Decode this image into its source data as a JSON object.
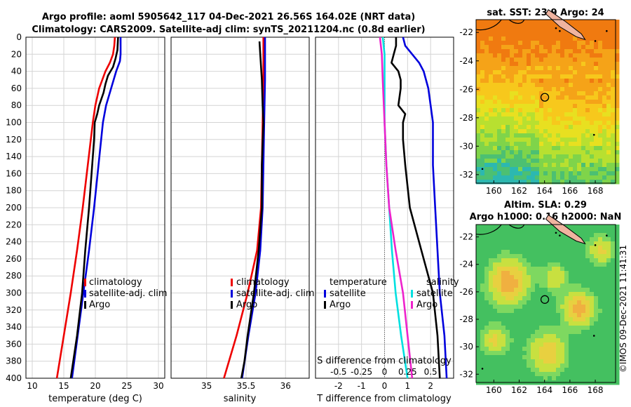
{
  "header": {
    "title_line1": "Argo profile: aoml 5905642_117 04-Dec-2021 26.56S 164.02E (NRT data)",
    "title_line2": "Climatology: CARS2009. Satellite-adj clim: synTS_20211204.nc (0.8d earlier)"
  },
  "sst_map": {
    "title": "sat. SST: 23.9 Argo: 24",
    "lat_ticks": [
      "-22",
      "-24",
      "-26",
      "-28",
      "-30",
      "-32"
    ],
    "lon_ticks": [
      "160",
      "162",
      "164",
      "166",
      "168"
    ]
  },
  "sla_map": {
    "title_line1": "Altim. SLA: 0.29",
    "title_line2": "Argo h1000: 0.16 h2000: NaN",
    "lat_ticks": [
      "-22",
      "-24",
      "-26",
      "-28",
      "-30",
      "-32"
    ],
    "lon_ticks": [
      "160",
      "162",
      "164",
      "166",
      "168"
    ]
  },
  "watermark": "©IMOS 09-Dec-2021 11:41:31",
  "colors": {
    "climatology": "#ee0000",
    "satellite": "#0000dd",
    "argo": "#000000",
    "salinity_sat": "#00e0e0",
    "salinity_argo": "#ee22cc",
    "grid": "#d4d4d4"
  },
  "chart_data": [
    {
      "type": "line",
      "name": "temperature",
      "xlabel": "temperature (deg C)",
      "ylabel": "",
      "xlim": [
        9,
        31
      ],
      "ylim": [
        400,
        0
      ],
      "xticks": [
        10,
        15,
        20,
        25,
        30
      ],
      "yticks": [
        0,
        20,
        40,
        60,
        80,
        100,
        120,
        140,
        160,
        180,
        200,
        220,
        240,
        260,
        280,
        300,
        320,
        340,
        360,
        380,
        400
      ],
      "legend": [
        "climatology",
        "satellite-adj. clim",
        "Argo"
      ],
      "legend_position": "lower-center",
      "series": [
        {
          "name": "climatology",
          "depth": [
            0,
            10,
            20,
            30,
            40,
            60,
            80,
            100,
            150,
            200,
            250,
            300,
            350,
            400
          ],
          "values": [
            23.1,
            23.0,
            22.8,
            22.3,
            21.6,
            20.6,
            20.0,
            19.6,
            18.8,
            18.0,
            17.1,
            16.1,
            15.0,
            13.9
          ]
        },
        {
          "name": "satellite-adj. clim",
          "depth": [
            0,
            20,
            28,
            40,
            60,
            80,
            100,
            150,
            200,
            250,
            300,
            350,
            400
          ],
          "values": [
            24.0,
            24.0,
            23.9,
            23.3,
            22.5,
            21.7,
            21.2,
            20.5,
            19.8,
            19.0,
            18.1,
            17.2,
            16.3
          ]
        },
        {
          "name": "Argo",
          "depth": [
            0,
            15,
            25,
            35,
            45,
            55,
            65,
            80,
            90,
            100,
            120,
            150,
            200,
            250,
            300,
            350,
            400
          ],
          "values": [
            23.6,
            23.5,
            23.2,
            22.8,
            22.0,
            21.6,
            21.3,
            20.6,
            20.3,
            19.9,
            19.8,
            19.5,
            19.0,
            18.4,
            17.9,
            17.1,
            16.1
          ]
        }
      ]
    },
    {
      "type": "line",
      "name": "salinity",
      "xlabel": "salinity",
      "ylabel": "",
      "xlim": [
        34.55,
        36.3
      ],
      "ylim": [
        400,
        0
      ],
      "xticks": [
        35,
        35.5,
        36
      ],
      "legend": [
        "climatology",
        "satellite-adj. clim",
        "Argo"
      ],
      "legend_position": "lower-center",
      "series": [
        {
          "name": "climatology",
          "depth": [
            0,
            50,
            100,
            150,
            200,
            250,
            300,
            350,
            400
          ],
          "values": [
            35.72,
            35.72,
            35.71,
            35.7,
            35.69,
            35.64,
            35.52,
            35.38,
            35.22
          ]
        },
        {
          "name": "satellite-adj. clim",
          "depth": [
            0,
            50,
            100,
            150,
            200,
            250,
            300,
            350,
            400
          ],
          "values": [
            35.74,
            35.74,
            35.73,
            35.72,
            35.71,
            35.68,
            35.62,
            35.53,
            35.45
          ]
        },
        {
          "name": "Argo",
          "depth": [
            5,
            20,
            50,
            80,
            100,
            150,
            200,
            250,
            300,
            350,
            380,
            400
          ],
          "values": [
            35.67,
            35.68,
            35.7,
            35.71,
            35.72,
            35.7,
            35.7,
            35.66,
            35.6,
            35.52,
            35.48,
            35.44
          ]
        }
      ]
    },
    {
      "type": "line",
      "name": "difference",
      "xlabel": "T difference from climatology",
      "xlabel_top": "S difference from climatology",
      "xlim": [
        -3,
        3
      ],
      "ylim": [
        400,
        0
      ],
      "xticks": [
        -2,
        -1,
        0,
        1,
        2
      ],
      "s_ticks": [
        "-0.5",
        "-0.25",
        "0",
        "0.25",
        "0.5"
      ],
      "legend_temperature_title": "temperature",
      "legend_salinity_title": "salinity",
      "legend_temperature": [
        "satellite",
        "Argo"
      ],
      "legend_salinity": [
        "satellite",
        "Argo"
      ],
      "series": [
        {
          "name": "T satellite",
          "depth": [
            0,
            10,
            20,
            30,
            40,
            60,
            80,
            100,
            150,
            200,
            250,
            300,
            350,
            400
          ],
          "values": [
            0.8,
            0.9,
            1.2,
            1.5,
            1.7,
            1.9,
            2.0,
            2.1,
            2.1,
            2.2,
            2.3,
            2.4,
            2.6,
            2.7
          ]
        },
        {
          "name": "T Argo",
          "depth": [
            0,
            10,
            20,
            30,
            40,
            50,
            60,
            80,
            90,
            100,
            120,
            150,
            200,
            250,
            300,
            350,
            400
          ],
          "values": [
            0.5,
            0.5,
            0.4,
            0.3,
            0.6,
            0.7,
            0.7,
            0.6,
            0.9,
            0.8,
            0.8,
            0.9,
            1.1,
            1.6,
            2.1,
            2.3,
            2.4
          ]
        },
        {
          "name": "S satellite",
          "depth": [
            0,
            20,
            50,
            100,
            150,
            200,
            250,
            300,
            350,
            400
          ],
          "values": [
            -0.02,
            0.0,
            0.0,
            0.0,
            0.02,
            0.05,
            0.08,
            0.12,
            0.18,
            0.25
          ]
        },
        {
          "name": "S Argo",
          "depth": [
            0,
            20,
            50,
            100,
            150,
            200,
            250,
            300,
            350,
            400
          ],
          "values": [
            -0.05,
            -0.03,
            -0.02,
            0.0,
            0.02,
            0.05,
            0.12,
            0.2,
            0.25,
            0.3
          ]
        }
      ]
    }
  ]
}
